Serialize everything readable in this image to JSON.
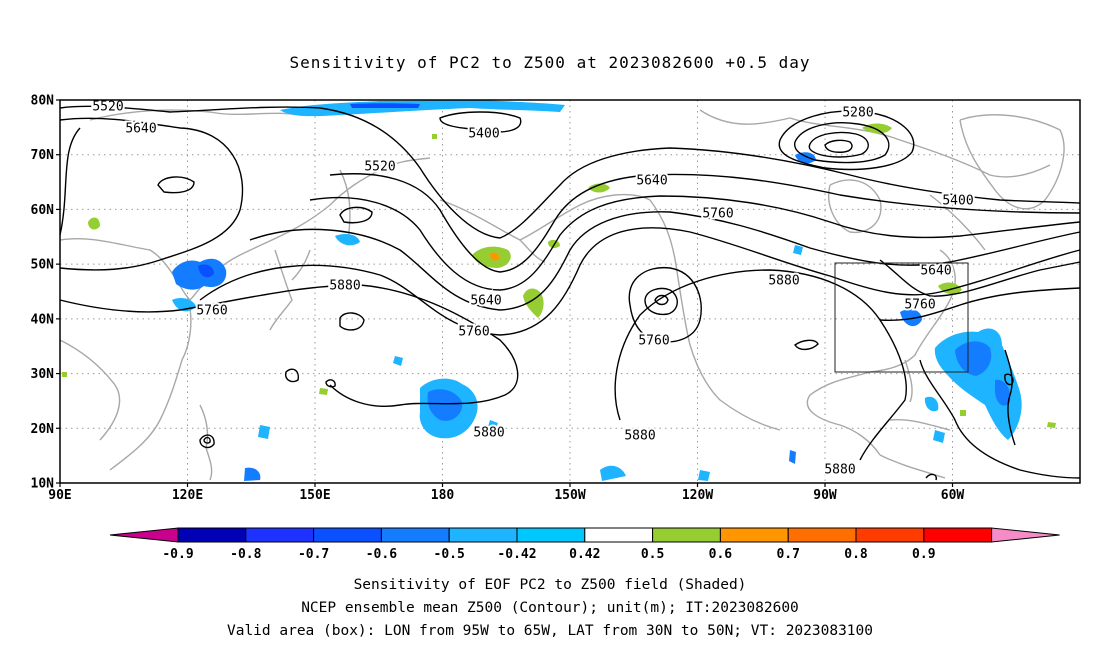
{
  "title": "Sensitivity of PC2 to Z500 at 2023082600 +0.5 day",
  "map": {
    "lat_labels": [
      "80N",
      "70N",
      "60N",
      "50N",
      "40N",
      "30N",
      "20N",
      "10N"
    ],
    "lon_labels": [
      "90E",
      "120E",
      "150E",
      "180",
      "150W",
      "120W",
      "90W",
      "60W"
    ],
    "lon_range": [
      90,
      330
    ],
    "lat_range": [
      10,
      80
    ],
    "grid": "dotted",
    "contour_labels": [
      "5520",
      "5640",
      "5400",
      "5520",
      "5280",
      "5640",
      "5400",
      "5760",
      "5880",
      "5760",
      "5640",
      "5760",
      "5760",
      "5880",
      "5640",
      "5760",
      "5880",
      "5880",
      "5880"
    ],
    "valid_box": {
      "lon_min": -95,
      "lon_max": -65,
      "lat_min": 30,
      "lat_max": 50
    }
  },
  "colorbar": {
    "labels": [
      "-0.9",
      "-0.8",
      "-0.7",
      "-0.6",
      "-0.5",
      "-0.42",
      "0.42",
      "0.5",
      "0.6",
      "0.7",
      "0.8",
      "0.9"
    ],
    "colors": [
      "#c8008c",
      "#0000b4",
      "#1e32ff",
      "#0a50ff",
      "#147dff",
      "#1eb4ff",
      "#00c8ff",
      "#ffffff",
      "#96cd32",
      "#ff9600",
      "#ff6e00",
      "#ff3c00",
      "#ff0000",
      "#f58cc8"
    ]
  },
  "captions": [
    "Sensitivity of EOF PC2 to Z500 field (Shaded)",
    "NCEP ensemble mean Z500 (Contour); unit(m); IT:2023082600",
    "Valid area (box): LON from 95W to 65W, LAT from 30N to 50N; VT: 2023083100"
  ]
}
